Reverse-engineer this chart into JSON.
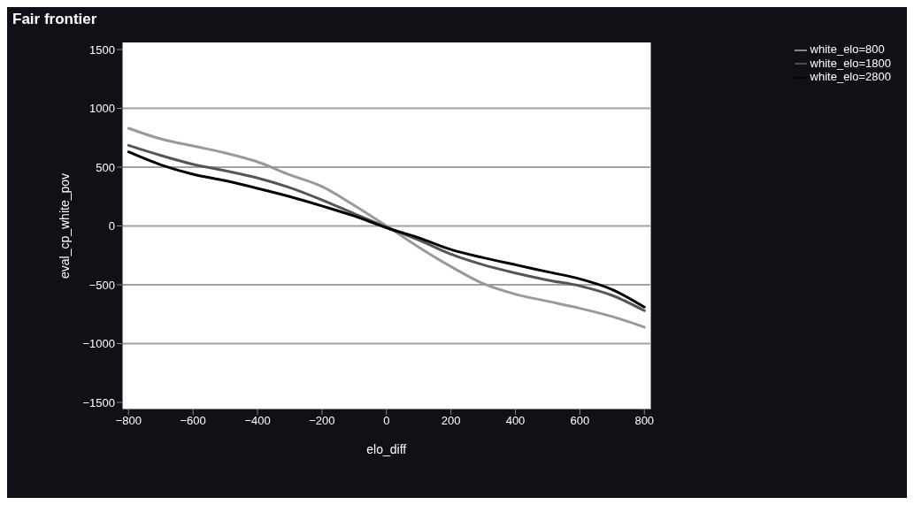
{
  "chart_data": {
    "type": "line",
    "title": "Fair frontier",
    "xlabel": "elo_diff",
    "ylabel": "eval_cp_white_pov",
    "x": [
      -800,
      -700,
      -600,
      -500,
      -400,
      -300,
      -200,
      -100,
      0,
      100,
      200,
      300,
      400,
      500,
      600,
      700,
      800
    ],
    "series": [
      {
        "name": "white_elo=800",
        "color": "#999999",
        "values": [
          831,
          740,
          680,
          620,
          545,
          435,
          335,
          175,
          0,
          -180,
          -345,
          -490,
          -580,
          -640,
          -700,
          -770,
          -860
        ]
      },
      {
        "name": "white_elo=1800",
        "color": "#555555",
        "values": [
          685,
          600,
          525,
          470,
          408,
          326,
          221,
          105,
          -10,
          -120,
          -240,
          -330,
          -400,
          -460,
          -510,
          -590,
          -720
        ]
      },
      {
        "name": "white_elo=2800",
        "color": "#000000",
        "values": [
          630,
          520,
          440,
          385,
          320,
          250,
          170,
          85,
          -15,
          -100,
          -200,
          -270,
          -330,
          -390,
          -450,
          -540,
          -690
        ]
      }
    ],
    "xlim": [
      -820,
      820
    ],
    "xticks": [
      -800,
      -600,
      -400,
      -200,
      0,
      200,
      400,
      600,
      800
    ],
    "ylim": [
      -1560,
      1560
    ],
    "yticks": [
      -1500,
      -1000,
      -500,
      0,
      500,
      1000,
      1500
    ],
    "grid": "y",
    "legend": "top right",
    "marker": "none",
    "line_style": "solid"
  }
}
